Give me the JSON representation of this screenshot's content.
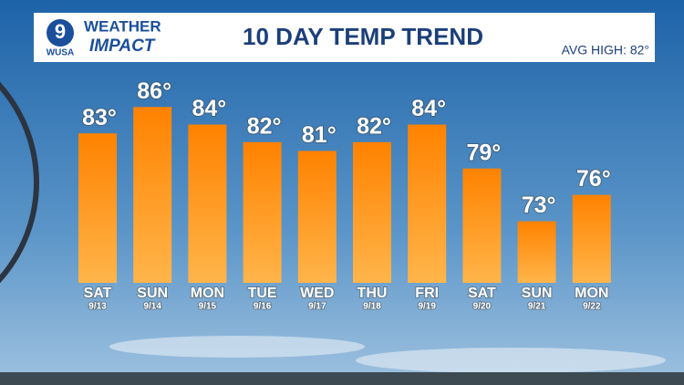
{
  "logo": {
    "number": "9",
    "station": "WUSA",
    "line1": "WEATHER",
    "line2": "IMPACT"
  },
  "chart_data": {
    "type": "bar",
    "title": "10 DAY TEMP TREND",
    "annotation": "AVG HIGH: 82°",
    "categories": [
      "SAT",
      "SUN",
      "MON",
      "TUE",
      "WED",
      "THU",
      "FRI",
      "SAT",
      "SUN",
      "MON"
    ],
    "dates": [
      "9/13",
      "9/14",
      "9/15",
      "9/16",
      "9/17",
      "9/18",
      "9/19",
      "9/20",
      "9/21",
      "9/22"
    ],
    "values": [
      83,
      86,
      84,
      82,
      81,
      82,
      84,
      79,
      73,
      76
    ],
    "value_labels": [
      "83°",
      "86°",
      "84°",
      "82°",
      "81°",
      "82°",
      "84°",
      "79°",
      "73°",
      "76°"
    ],
    "color": "#ff8a00",
    "ylim": [
      66,
      88
    ]
  }
}
